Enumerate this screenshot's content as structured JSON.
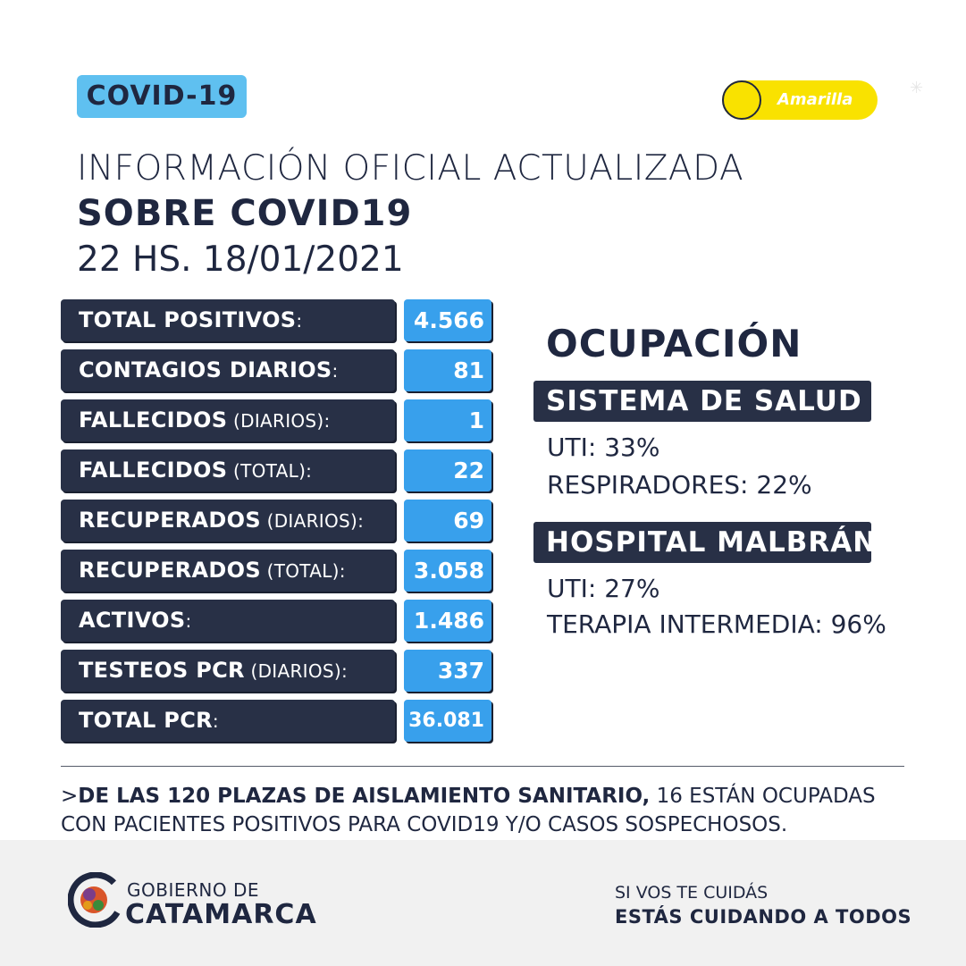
{
  "badge": "COVID-19",
  "alert_level": "Amarilla",
  "header": {
    "line1": "INFORMACIÓN OFICIAL ACTUALIZADA",
    "line2": "SOBRE COVID19",
    "line3": "22 HS. 18/01/2021"
  },
  "stats": [
    {
      "label": "TOTAL POSITIVOS",
      "suffix": ":",
      "value": "4.566"
    },
    {
      "label": "CONTAGIOS DIARIOS",
      "suffix": ":",
      "value": "81"
    },
    {
      "label": "FALLECIDOS",
      "suffix": " (DIARIOS):",
      "value": "1"
    },
    {
      "label": "FALLECIDOS",
      "suffix": " (TOTAL):",
      "value": "22"
    },
    {
      "label": "RECUPERADOS",
      "suffix": " (DIARIOS):",
      "value": "69"
    },
    {
      "label": "RECUPERADOS",
      "suffix": " (TOTAL):",
      "value": "3.058"
    },
    {
      "label": "ACTIVOS",
      "suffix": ":",
      "value": "1.486"
    },
    {
      "label": "TESTEOS PCR",
      "suffix": " (DIARIOS):",
      "value": "337"
    },
    {
      "label": "TOTAL PCR",
      "suffix": ":",
      "value": "36.081"
    }
  ],
  "occupancy": {
    "title": "OCUPACIÓN",
    "system": {
      "heading": "SISTEMA DE SALUD",
      "uti": "UTI: 33%",
      "respiradores": "RESPIRADORES: 22%"
    },
    "hospital": {
      "heading": "HOSPITAL MALBRÁN",
      "uti": "UTI: 27%",
      "terapia": "TERAPIA INTERMEDIA: 96%"
    }
  },
  "note": {
    "prefix": ">",
    "bold": "DE LAS 120 PLAZAS DE AISLAMIENTO SANITARIO,",
    "rest": " 16 ESTÁN OCUPADAS CON PACIENTES POSITIVOS PARA COVID19 Y/O CASOS SOSPECHOSOS."
  },
  "footer": {
    "gov_small": "GOBIERNO DE",
    "gov_big": "CATAMARCA",
    "slogan1": "SI VOS TE CUIDÁS",
    "slogan2": "ESTÁS CUIDANDO A TODOS"
  },
  "colors": {
    "navy": "#283046",
    "blue": "#38a0ec",
    "light_blue": "#5fc0f0",
    "yellow": "#f9e200"
  }
}
